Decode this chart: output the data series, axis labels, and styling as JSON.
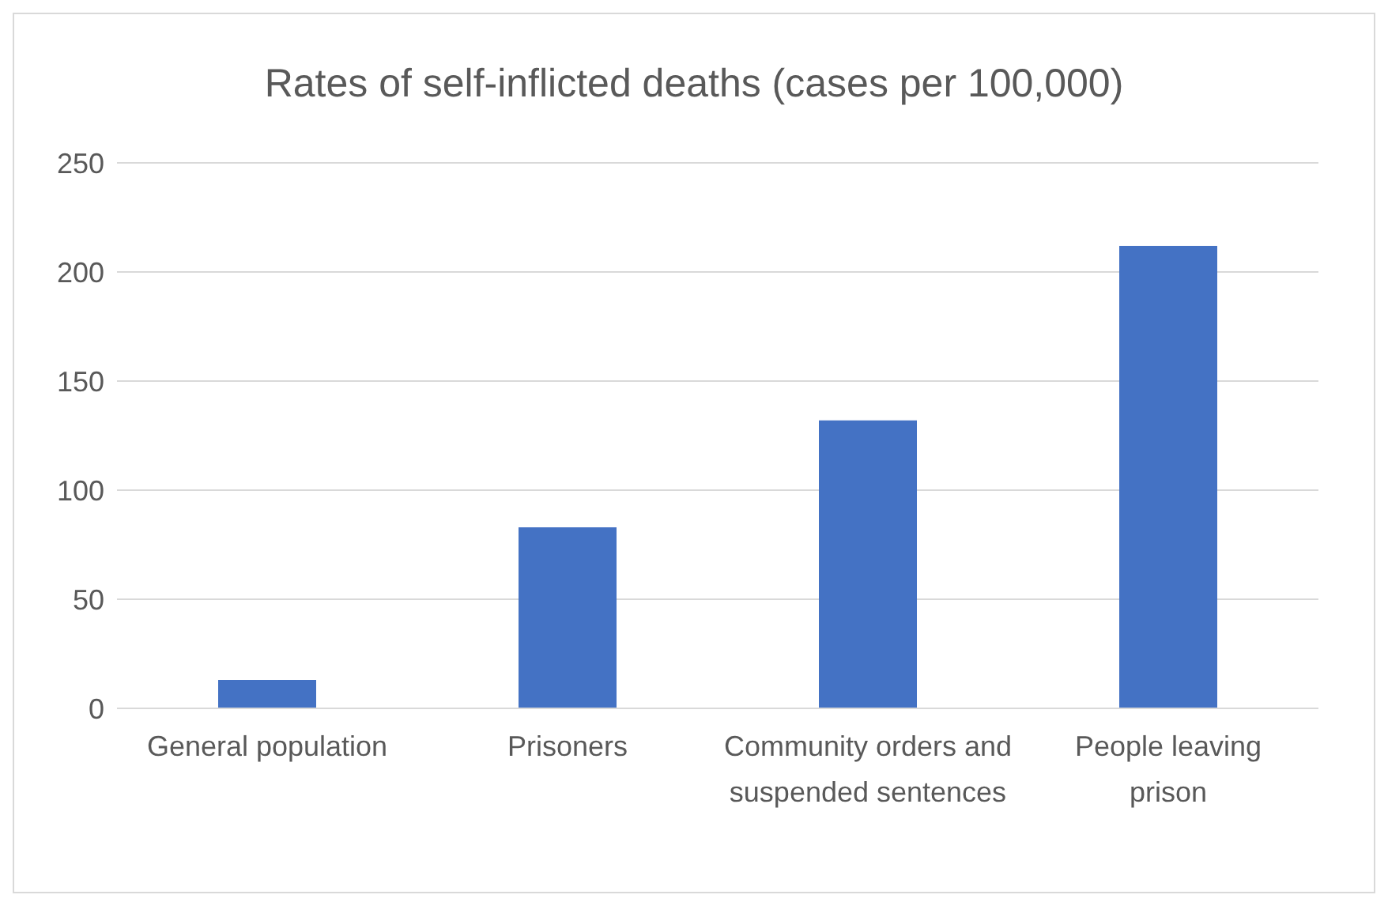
{
  "chart_data": {
    "type": "bar",
    "title": "Rates of self-inflicted deaths (cases per 100,000)",
    "categories": [
      "General population",
      "Prisoners",
      "Community orders and suspended sentences",
      "People leaving prison"
    ],
    "values": [
      13,
      83,
      132,
      212
    ],
    "color": "#4472c4",
    "ylim": [
      0,
      250
    ],
    "yticks": [
      0,
      50,
      100,
      150,
      200,
      250
    ],
    "grid": "y",
    "legend": false
  }
}
